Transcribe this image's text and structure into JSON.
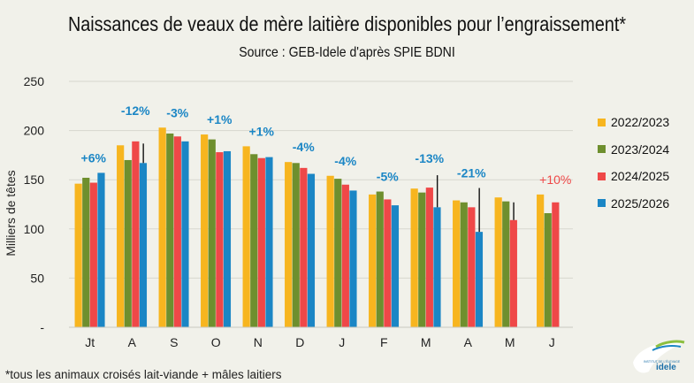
{
  "chart_data": {
    "type": "bar",
    "title": "Naissances de veaux de mère laitière disponibles pour l’engraissement*",
    "subtitle": "Source : GEB-Idele d'après SPIE BDNI",
    "ylabel": "Milliers de têtes",
    "xlabel": "",
    "ylim": [
      0,
      250
    ],
    "yticks": [
      "-",
      "50",
      "100",
      "150",
      "200",
      "250"
    ],
    "grid": true,
    "legend_position": "right",
    "categories": [
      "Jt",
      "A",
      "S",
      "O",
      "N",
      "D",
      "J",
      "F",
      "M",
      "A",
      "M",
      "J"
    ],
    "series": [
      {
        "name": "2022/2023",
        "color": "#f7b51f",
        "values": [
          146,
          185,
          203,
          196,
          184,
          168,
          154,
          135,
          141,
          129,
          132,
          135
        ]
      },
      {
        "name": "2023/2024",
        "color": "#6e8f2e",
        "values": [
          152,
          170,
          197,
          191,
          176,
          167,
          151,
          138,
          137,
          127,
          128,
          116
        ]
      },
      {
        "name": "2024/2025",
        "color": "#ef4848",
        "values": [
          147,
          189,
          194,
          178,
          172,
          162,
          145,
          130,
          142,
          122,
          109,
          127
        ]
      },
      {
        "name": "2025/2026",
        "color": "#1b86c5",
        "values": [
          157,
          167,
          189,
          179,
          173,
          156,
          139,
          124,
          122,
          97,
          null,
          null
        ]
      }
    ],
    "annotations": [
      {
        "category": "Jt",
        "text": "+6%",
        "color": "#1b86c5"
      },
      {
        "category": "A",
        "text": "-12%",
        "color": "#1b86c5"
      },
      {
        "category": "S",
        "text": "-3%",
        "color": "#1b86c5"
      },
      {
        "category": "O",
        "text": "+1%",
        "color": "#1b86c5"
      },
      {
        "category": "N",
        "text": "+1%",
        "color": "#1b86c5"
      },
      {
        "category": "D",
        "text": "-4%",
        "color": "#1b86c5"
      },
      {
        "category": "J",
        "text": "-4%",
        "color": "#1b86c5"
      },
      {
        "category": "F",
        "text": "-5%",
        "color": "#1b86c5"
      },
      {
        "category": "M",
        "text": "-13%",
        "color": "#1b86c5"
      },
      {
        "category": "A",
        "text": "-21%",
        "color": "#1b86c5"
      },
      {
        "category": "J",
        "text": "+10%",
        "color": "#ef4848"
      }
    ]
  },
  "footnote": "*tous les animaux croisés lait-viande + mâles laitiers",
  "logo": {
    "text_top": "INSTITUT DE L'ÉLEVAGE",
    "text_brand": "idele"
  }
}
